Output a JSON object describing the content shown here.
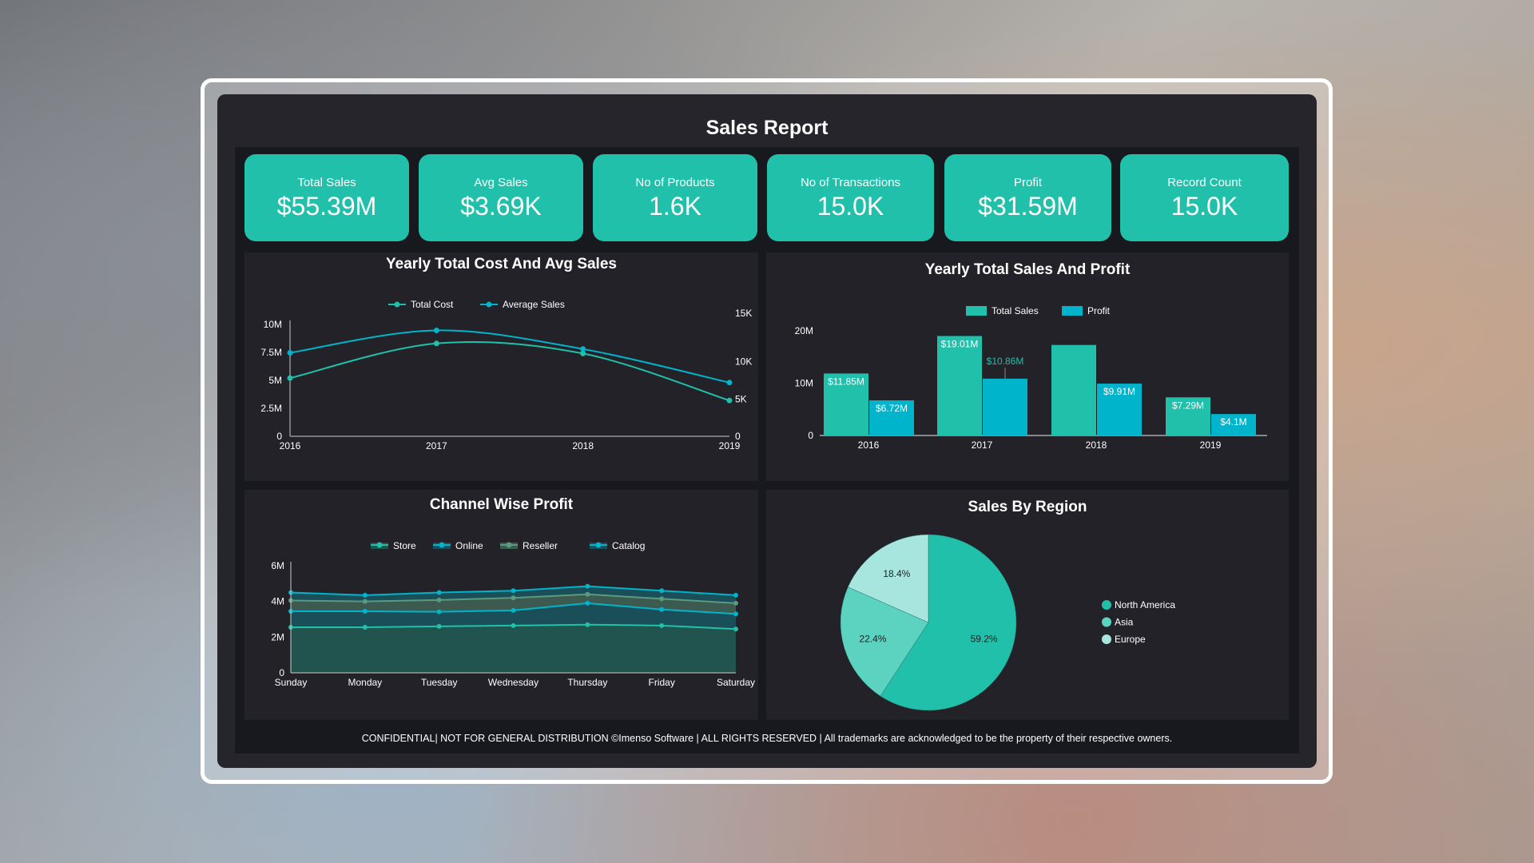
{
  "header": {
    "title": "Sales Report"
  },
  "kpis": [
    {
      "label": "Total Sales",
      "value": "$55.39M"
    },
    {
      "label": "Avg Sales",
      "value": "$3.69K"
    },
    {
      "label": "No of Products",
      "value": "1.6K"
    },
    {
      "label": "No of Transactions",
      "value": "15.0K"
    },
    {
      "label": "Profit",
      "value": "$31.59M"
    },
    {
      "label": "Record Count",
      "value": "15.0K"
    }
  ],
  "footer": "CONFIDENTIAL| NOT FOR GENERAL DISTRIBUTION ©Imenso Software | ALL RIGHTS RESERVED | All trademarks are acknowledged to be the property of their respective owners.",
  "colors": {
    "teal": "#20c0aa",
    "blue": "#00b4cc",
    "green": "#5a9a80",
    "light": "#a6e6de",
    "mid": "#5cd3c0"
  },
  "chart_data": [
    {
      "type": "line",
      "title": "Yearly Total Cost And Avg Sales",
      "x": [
        "2016",
        "2017",
        "2018",
        "2019"
      ],
      "yticks_left": [
        "0",
        "2.5M",
        "5M",
        "7.5M",
        "10M"
      ],
      "ylim_left": [
        0,
        10000000
      ],
      "yticks_right": [
        "0",
        "5K",
        "10K",
        "15K"
      ],
      "ylim_right": [
        0,
        15000
      ],
      "legend": "top",
      "series": [
        {
          "name": "Total Cost",
          "axis": "left",
          "values": [
            5200000,
            8300000,
            7400000,
            3200000
          ],
          "color": "#20c0aa"
        },
        {
          "name": "Average Sales",
          "axis": "right",
          "values": [
            11200,
            14200,
            11700,
            7200
          ],
          "color": "#00b4cc"
        }
      ]
    },
    {
      "type": "bar",
      "title": "Yearly Total Sales And Profit",
      "categories": [
        "2016",
        "2017",
        "2018",
        "2019"
      ],
      "yticks": [
        "0",
        "10M",
        "20M"
      ],
      "ylim": [
        0,
        20000000
      ],
      "legend": "top",
      "series": [
        {
          "name": "Total Sales",
          "values": [
            11850000,
            19010000,
            17300000,
            7290000
          ],
          "labels": [
            "$11.85M",
            "$19.01M",
            "",
            "$7.29M"
          ],
          "color": "#20c0aa"
        },
        {
          "name": "Profit",
          "values": [
            6720000,
            10860000,
            9910000,
            4100000
          ],
          "labels": [
            "$6.72M",
            "$10.86M",
            "$9.91M",
            "$4.1M"
          ],
          "color": "#00b4cc"
        }
      ]
    },
    {
      "type": "area",
      "stacked": true,
      "title": "Channel Wise Profit",
      "categories": [
        "Sunday",
        "Monday",
        "Tuesday",
        "Wednesday",
        "Thursday",
        "Friday",
        "Saturday"
      ],
      "yticks": [
        "0",
        "2M",
        "4M",
        "6M"
      ],
      "ylim": [
        0,
        6000000
      ],
      "legend": "top",
      "series": [
        {
          "name": "Store",
          "values": [
            2550000,
            2550000,
            2600000,
            2650000,
            2700000,
            2650000,
            2450000
          ],
          "color": "#20c0aa"
        },
        {
          "name": "Online",
          "values": [
            900000,
            900000,
            820000,
            850000,
            1200000,
            900000,
            850000
          ],
          "color": "#00b4cc"
        },
        {
          "name": "Reseller",
          "values": [
            600000,
            550000,
            660000,
            700000,
            500000,
            600000,
            600000
          ],
          "color": "#5a9a80"
        },
        {
          "name": "Catalog",
          "values": [
            450000,
            350000,
            420000,
            400000,
            450000,
            450000,
            450000
          ],
          "color": "#00b4cc"
        }
      ]
    },
    {
      "type": "pie",
      "title": "Sales By Region",
      "legend": "right",
      "slices": [
        {
          "name": "North America",
          "value": 59.2,
          "label": "59.2%",
          "color": "#20c0aa"
        },
        {
          "name": "Asia",
          "value": 22.4,
          "label": "22.4%",
          "color": "#5cd3c0"
        },
        {
          "name": "Europe",
          "value": 18.4,
          "label": "18.4%",
          "color": "#a6e6de"
        }
      ]
    }
  ]
}
